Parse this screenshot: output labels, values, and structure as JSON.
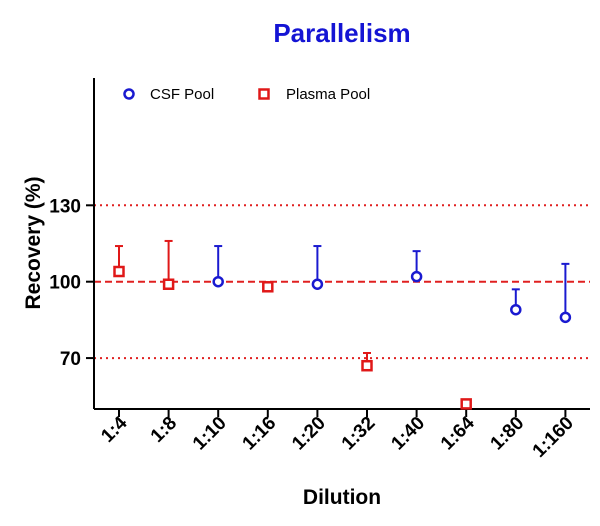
{
  "chart_data": {
    "type": "scatter",
    "title": "Parallelism",
    "title_color": "#1414d4",
    "xlabel": "Dilution",
    "ylabel": "Recovery (%)",
    "categories": [
      "1:4",
      "1:8",
      "1:10",
      "1:16",
      "1:20",
      "1:32",
      "1:40",
      "1:64",
      "1:80",
      "1:160"
    ],
    "ylim": [
      50,
      180
    ],
    "yticks": [
      70,
      100,
      130
    ],
    "ytick_labels": [
      "70",
      "100",
      "130"
    ],
    "reference_lines": [
      {
        "y": 130,
        "style": "dotted",
        "color": "#e02020"
      },
      {
        "y": 100,
        "style": "dashed",
        "color": "#e02020"
      },
      {
        "y": 70,
        "style": "dotted",
        "color": "#e02020"
      }
    ],
    "series": [
      {
        "name": "CSF Pool",
        "marker": "circle",
        "color": "#1a1ad0",
        "points": [
          {
            "category": "1:10",
            "y": 100,
            "error_upper": 114
          },
          {
            "category": "1:20",
            "y": 99,
            "error_upper": 114
          },
          {
            "category": "1:40",
            "y": 102,
            "error_upper": 112
          },
          {
            "category": "1:80",
            "y": 89,
            "error_upper": 97
          },
          {
            "category": "1:160",
            "y": 86,
            "error_upper": 107
          }
        ]
      },
      {
        "name": "Plasma Pool",
        "marker": "square",
        "color": "#e01818",
        "points": [
          {
            "category": "1:4",
            "y": 104,
            "error_upper": 114
          },
          {
            "category": "1:8",
            "y": 99,
            "error_upper": 116
          },
          {
            "category": "1:16",
            "y": 98,
            "error_upper": null
          },
          {
            "category": "1:32",
            "y": 67,
            "error_upper": 72
          },
          {
            "category": "1:64",
            "y": 52,
            "error_upper": null
          }
        ]
      }
    ],
    "legend": {
      "position": "top-left",
      "entries": [
        "CSF Pool",
        "Plasma Pool"
      ]
    }
  }
}
